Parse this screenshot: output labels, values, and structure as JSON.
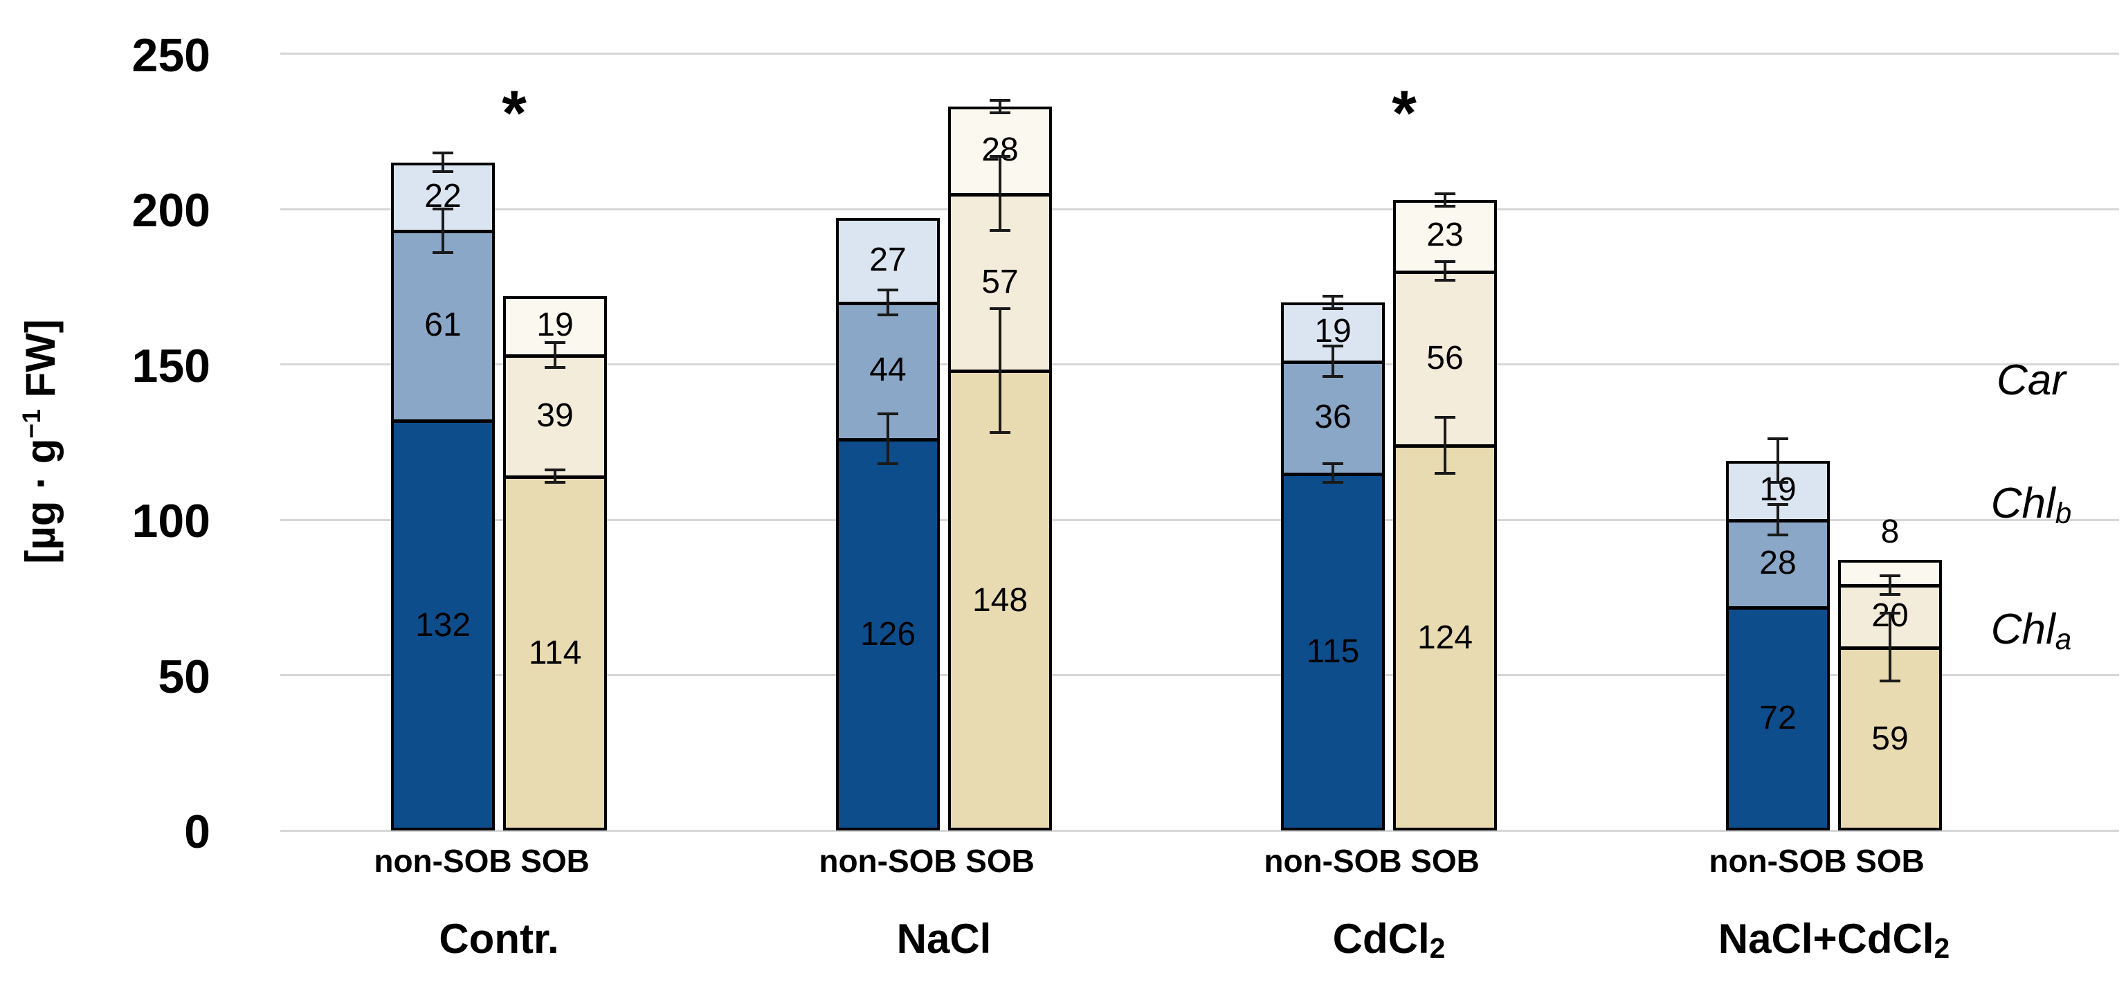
{
  "chart_data": {
    "type": "bar",
    "stacked": true,
    "title": "",
    "xlabel": "",
    "ylabel": "[µg · g⁻¹ FW]",
    "ylim": [
      0,
      250
    ],
    "ytick_interval": 50,
    "grid": true,
    "legend_position": "right",
    "categories": [
      "Contr.",
      "NaCl",
      "CdCl2",
      "NaCl+CdCl2"
    ],
    "bar_pairs": [
      "non-SOB",
      "SOB"
    ],
    "series": [
      {
        "name": "Chl_a",
        "non_SOB": [
          132,
          126,
          115,
          72
        ],
        "SOB": [
          114,
          148,
          124,
          59
        ]
      },
      {
        "name": "Chl_b",
        "non_SOB": [
          61,
          44,
          36,
          28
        ],
        "SOB": [
          39,
          57,
          56,
          20
        ]
      },
      {
        "name": "Car",
        "non_SOB": [
          22,
          27,
          19,
          19
        ],
        "SOB": [
          19,
          28,
          23,
          8
        ]
      }
    ],
    "totals": {
      "non_SOB": [
        215,
        197,
        170,
        119
      ],
      "SOB": [
        172,
        233,
        203,
        87
      ]
    },
    "significance_marks": [
      "Contr.",
      "CdCl2"
    ]
  },
  "y_axis": {
    "title_prefix": "[µg · g",
    "title_sup": "−1",
    "title_suffix": " FW]",
    "ticks": [
      250,
      200,
      150,
      100,
      50,
      0
    ]
  },
  "legend": [
    {
      "base": "Car",
      "sub": ""
    },
    {
      "base": "Chl",
      "sub": "b"
    },
    {
      "base": "Chl",
      "sub": "a"
    }
  ],
  "groups": [
    {
      "label": {
        "text": "Contr.",
        "sub": ""
      },
      "significance": "*",
      "bars": [
        {
          "key": "non_SOB",
          "label": "non-SOB",
          "segments": [
            {
              "series": "Chl_a",
              "value": 132
            },
            {
              "series": "Chl_b",
              "value": 61
            },
            {
              "series": "Car",
              "value": 22
            }
          ],
          "error_bars": [
            {
              "at": 193,
              "half": 7
            },
            {
              "at": 215,
              "half": 3
            }
          ]
        },
        {
          "key": "SOB",
          "label": "SOB",
          "segments": [
            {
              "series": "Chl_a",
              "value": 114
            },
            {
              "series": "Chl_b",
              "value": 39
            },
            {
              "series": "Car",
              "value": 19
            }
          ],
          "error_bars": [
            {
              "at": 114,
              "half": 2
            },
            {
              "at": 153,
              "half": 4
            }
          ]
        }
      ]
    },
    {
      "label": {
        "text": "NaCl",
        "sub": ""
      },
      "significance": "",
      "bars": [
        {
          "key": "non_SOB",
          "label": "non-SOB",
          "segments": [
            {
              "series": "Chl_a",
              "value": 126
            },
            {
              "series": "Chl_b",
              "value": 44
            },
            {
              "series": "Car",
              "value": 27
            }
          ],
          "error_bars": [
            {
              "at": 126,
              "half": 8
            },
            {
              "at": 170,
              "half": 4
            }
          ]
        },
        {
          "key": "SOB",
          "label": "SOB",
          "segments": [
            {
              "series": "Chl_a",
              "value": 148
            },
            {
              "series": "Chl_b",
              "value": 57
            },
            {
              "series": "Car",
              "value": 28
            }
          ],
          "error_bars": [
            {
              "at": 148,
              "half": 20
            },
            {
              "at": 205,
              "half": 12
            },
            {
              "at": 233,
              "half": 2
            }
          ]
        }
      ]
    },
    {
      "label": {
        "text": "CdCl",
        "sub": "2"
      },
      "significance": "*",
      "bars": [
        {
          "key": "non_SOB",
          "label": "non-SOB",
          "segments": [
            {
              "series": "Chl_a",
              "value": 115
            },
            {
              "series": "Chl_b",
              "value": 36
            },
            {
              "series": "Car",
              "value": 19
            }
          ],
          "error_bars": [
            {
              "at": 115,
              "half": 3
            },
            {
              "at": 151,
              "half": 5
            },
            {
              "at": 170,
              "half": 2
            }
          ]
        },
        {
          "key": "SOB",
          "label": "SOB",
          "segments": [
            {
              "series": "Chl_a",
              "value": 124
            },
            {
              "series": "Chl_b",
              "value": 56
            },
            {
              "series": "Car",
              "value": 23
            }
          ],
          "error_bars": [
            {
              "at": 124,
              "half": 9
            },
            {
              "at": 180,
              "half": 3
            },
            {
              "at": 203,
              "half": 2
            }
          ]
        }
      ]
    },
    {
      "label": {
        "text": "NaCl+CdCl",
        "sub": "2"
      },
      "significance": "",
      "bars": [
        {
          "key": "non_SOB",
          "label": "non-SOB",
          "segments": [
            {
              "series": "Chl_a",
              "value": 72
            },
            {
              "series": "Chl_b",
              "value": 28
            },
            {
              "series": "Car",
              "value": 19
            }
          ],
          "error_bars": [
            {
              "at": 100,
              "half": 5
            },
            {
              "at": 119,
              "half": 7
            }
          ]
        },
        {
          "key": "SOB",
          "label": "SOB",
          "segments": [
            {
              "series": "Chl_a",
              "value": 59
            },
            {
              "series": "Chl_b",
              "value": 20
            },
            {
              "series": "Car",
              "value": 8,
              "label_outside": true
            }
          ],
          "error_bars": [
            {
              "at": 59,
              "half": 11
            },
            {
              "at": 79,
              "half": 3
            }
          ]
        }
      ]
    }
  ],
  "colors": {
    "non_SOB": {
      "Chl_a": "#0E4D8C",
      "Chl_b": "#8AA7C8",
      "Car": "#DBE5F1"
    },
    "SOB": {
      "Chl_a": "#E9DBB1",
      "Chl_b": "#F4ECDB",
      "Car": "#FBF8F0"
    },
    "border": "#000000",
    "gridline": "#D6D6D6",
    "error_bar": "#1A1A1A"
  }
}
